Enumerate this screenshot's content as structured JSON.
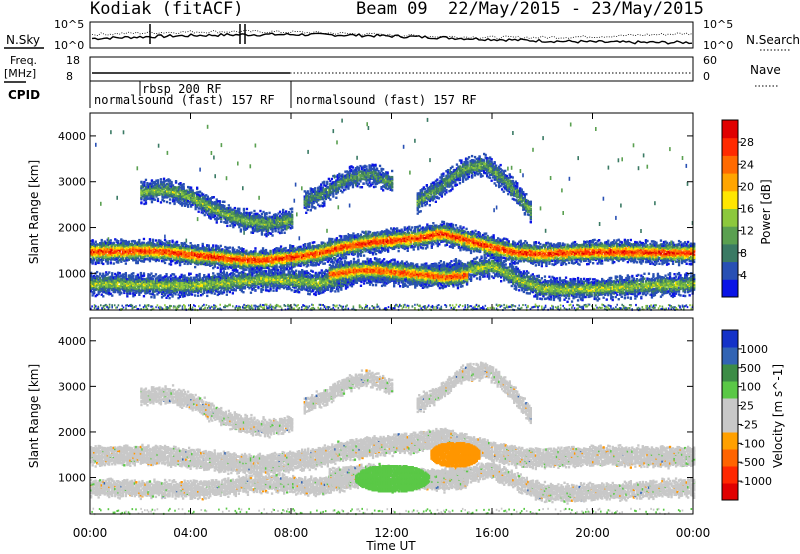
{
  "header": {
    "station": "Kodiak (fitACF)",
    "beam": "Beam 09",
    "date_range": "22/May/2015 - 23/May/2015"
  },
  "summary": {
    "nsky_label": "N.Sky",
    "nsky_ticks": [
      "10^5",
      "10^0"
    ],
    "nsearch_label": "N.Search",
    "nsearch_ticks": [
      "10^5",
      "10^0"
    ],
    "freq_label_line1": "Freq.",
    "freq_label_line2": "[MHz]",
    "freq_ticks": [
      "18",
      "8"
    ],
    "nave_label": "Nave",
    "nave_ticks": [
      "60",
      "0"
    ],
    "cpid_label": "CPID",
    "cpid_entries": [
      {
        "text": "normalsound (fast) 157 RF",
        "start_hour": 0
      },
      {
        "text": "rbsp 200 RF",
        "start_hour": 2
      },
      {
        "text": "normalsound (fast) 157 RF",
        "start_hour": 8
      }
    ]
  },
  "chart_data": [
    {
      "type": "heatmap",
      "name": "power",
      "ylabel": "Slant Range [km]",
      "ylim": [
        200,
        4500
      ],
      "yticks": [
        "1000",
        "2000",
        "3000",
        "4000"
      ],
      "xlim_hours": [
        0,
        24
      ],
      "colorbar_label": "Power [dB]",
      "colorbar_ticks": [
        "4",
        "8",
        "12",
        "16",
        "20",
        "24",
        "28"
      ],
      "colorbar_colors": [
        "#0a14e6",
        "#2850b4",
        "#3a7a64",
        "#5aa050",
        "#8cc83c",
        "#ffe600",
        "#ffa500",
        "#ff6a00",
        "#ff2a00",
        "#e00000"
      ],
      "bands": [
        {
          "start": 0,
          "end": 24,
          "center_km": [
            1500,
            1510,
            1520,
            1500,
            1440,
            1380,
            1330,
            1320,
            1380,
            1460,
            1600,
            1700,
            1750,
            1800,
            1900,
            1750,
            1600,
            1480,
            1450,
            1480,
            1500,
            1500,
            1490,
            1480,
            1480
          ],
          "intensity": 0.85
        },
        {
          "start": 0,
          "end": 24,
          "center_km": [
            800,
            800,
            780,
            760,
            760,
            800,
            860,
            900,
            880,
            820,
            900,
            1050,
            1000,
            950,
            1050,
            1100,
            1200,
            900,
            700,
            680,
            700,
            720,
            760,
            780,
            800
          ],
          "intensity": 0.45
        },
        {
          "start": 9.5,
          "end": 15,
          "center_km": [
            1000,
            1080,
            1100,
            1060,
            1000,
            950,
            1000
          ],
          "intensity": 0.8
        },
        {
          "start": 2,
          "end": 8,
          "center_km": [
            2800,
            2850,
            2700,
            2400,
            2200,
            2100,
            2200
          ],
          "intensity": 0.4
        },
        {
          "start": 8.5,
          "end": 12,
          "center_km": [
            2600,
            2800,
            3100,
            3200,
            3000
          ],
          "intensity": 0.3
        },
        {
          "start": 13,
          "end": 17.5,
          "center_km": [
            2600,
            2900,
            3300,
            3400,
            3000,
            2400
          ],
          "intensity": 0.35
        }
      ]
    },
    {
      "type": "heatmap",
      "name": "velocity",
      "ylabel": "Slant Range [km]",
      "ylim": [
        200,
        4500
      ],
      "yticks": [
        "1000",
        "2000",
        "3000",
        "4000"
      ],
      "xlim_hours": [
        0,
        24
      ],
      "xticks": [
        "00:00",
        "04:00",
        "08:00",
        "12:00",
        "16:00",
        "20:00",
        "00:00"
      ],
      "xlabel": "Time UT",
      "colorbar_label": "Velocity [m s^-1]",
      "colorbar_ticks": [
        "1000",
        "500",
        "100",
        "25",
        "-25",
        "-100",
        "-500",
        "-1000"
      ],
      "colorbar_colors": [
        "#1432c8",
        "#3264b4",
        "#3c8c46",
        "#5ac846",
        "#c8c8c8",
        "#c8c8c8",
        "#ffa000",
        "#ff6400",
        "#ff2800",
        "#e00000"
      ],
      "patches": [
        {
          "name": "positive-flow",
          "start": 10.5,
          "end": 13.5,
          "range_km": [
            700,
            1300
          ],
          "color": "#5ac846"
        },
        {
          "name": "negative-flow",
          "start": 13.5,
          "end": 15.5,
          "range_km": [
            1250,
            1800
          ],
          "color": "#ff9600"
        }
      ]
    }
  ]
}
